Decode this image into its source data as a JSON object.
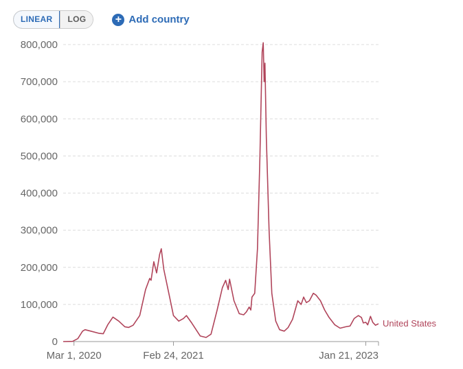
{
  "controls": {
    "scale_linear": "LINEAR",
    "scale_log": "LOG",
    "add_country": "Add country",
    "active_scale": "linear"
  },
  "chart_data": {
    "type": "line",
    "title": "",
    "xlabel": "",
    "ylabel": "",
    "x_range": [
      "2020-01-22",
      "2023-03-08"
    ],
    "ylim": [
      0,
      800000
    ],
    "yticks": [
      0,
      100000,
      200000,
      300000,
      400000,
      500000,
      600000,
      700000,
      800000
    ],
    "ytick_labels": [
      "0",
      "100,000",
      "200,000",
      "300,000",
      "400,000",
      "500,000",
      "600,000",
      "700,000",
      "800,000"
    ],
    "xticks": [
      "2020-03-01",
      "2021-02-24",
      "2023-01-21"
    ],
    "xtick_labels": [
      "Mar 1, 2020",
      "Feb 24, 2021",
      "Jan 21, 2023"
    ],
    "grid": "horizontal-dashed",
    "series": [
      {
        "name": "United States",
        "color": "#b0445a",
        "points": [
          [
            "2020-01-22",
            0
          ],
          [
            "2020-02-25",
            500
          ],
          [
            "2020-03-15",
            8000
          ],
          [
            "2020-04-01",
            28000
          ],
          [
            "2020-04-10",
            32000
          ],
          [
            "2020-05-01",
            28000
          ],
          [
            "2020-06-01",
            22000
          ],
          [
            "2020-06-15",
            21000
          ],
          [
            "2020-07-01",
            45000
          ],
          [
            "2020-07-20",
            66000
          ],
          [
            "2020-08-10",
            55000
          ],
          [
            "2020-09-01",
            40000
          ],
          [
            "2020-09-15",
            38000
          ],
          [
            "2020-10-01",
            44000
          ],
          [
            "2020-10-25",
            70000
          ],
          [
            "2020-11-15",
            140000
          ],
          [
            "2020-11-30",
            170000
          ],
          [
            "2020-12-05",
            165000
          ],
          [
            "2020-12-15",
            215000
          ],
          [
            "2020-12-25",
            185000
          ],
          [
            "2021-01-05",
            235000
          ],
          [
            "2021-01-11",
            250000
          ],
          [
            "2021-01-20",
            195000
          ],
          [
            "2021-02-10",
            120000
          ],
          [
            "2021-02-24",
            70000
          ],
          [
            "2021-03-15",
            55000
          ],
          [
            "2021-04-01",
            62000
          ],
          [
            "2021-04-12",
            70000
          ],
          [
            "2021-05-01",
            50000
          ],
          [
            "2021-06-01",
            15000
          ],
          [
            "2021-06-22",
            11000
          ],
          [
            "2021-07-10",
            20000
          ],
          [
            "2021-08-01",
            85000
          ],
          [
            "2021-08-20",
            145000
          ],
          [
            "2021-09-01",
            165000
          ],
          [
            "2021-09-10",
            140000
          ],
          [
            "2021-09-15",
            168000
          ],
          [
            "2021-10-01",
            110000
          ],
          [
            "2021-10-20",
            75000
          ],
          [
            "2021-11-05",
            72000
          ],
          [
            "2021-11-15",
            80000
          ],
          [
            "2021-11-25",
            93000
          ],
          [
            "2021-12-01",
            85000
          ],
          [
            "2021-12-05",
            120000
          ],
          [
            "2021-12-15",
            130000
          ],
          [
            "2021-12-25",
            250000
          ],
          [
            "2022-01-03",
            500000
          ],
          [
            "2022-01-11",
            780000
          ],
          [
            "2022-01-15",
            805000
          ],
          [
            "2022-01-18",
            700000
          ],
          [
            "2022-01-21",
            750000
          ],
          [
            "2022-01-26",
            550000
          ],
          [
            "2022-02-05",
            300000
          ],
          [
            "2022-02-15",
            130000
          ],
          [
            "2022-03-01",
            55000
          ],
          [
            "2022-03-15",
            32000
          ],
          [
            "2022-04-01",
            28000
          ],
          [
            "2022-04-15",
            38000
          ],
          [
            "2022-05-01",
            60000
          ],
          [
            "2022-05-20",
            110000
          ],
          [
            "2022-06-01",
            100000
          ],
          [
            "2022-06-10",
            120000
          ],
          [
            "2022-06-20",
            105000
          ],
          [
            "2022-07-01",
            110000
          ],
          [
            "2022-07-15",
            130000
          ],
          [
            "2022-07-25",
            125000
          ],
          [
            "2022-08-10",
            110000
          ],
          [
            "2022-08-25",
            85000
          ],
          [
            "2022-09-10",
            65000
          ],
          [
            "2022-10-01",
            45000
          ],
          [
            "2022-10-20",
            36000
          ],
          [
            "2022-11-10",
            40000
          ],
          [
            "2022-11-25",
            42000
          ],
          [
            "2022-12-10",
            62000
          ],
          [
            "2022-12-25",
            70000
          ],
          [
            "2023-01-05",
            65000
          ],
          [
            "2023-01-12",
            50000
          ],
          [
            "2023-01-21",
            52000
          ],
          [
            "2023-01-28",
            45000
          ],
          [
            "2023-02-07",
            68000
          ],
          [
            "2023-02-15",
            52000
          ],
          [
            "2023-02-25",
            44000
          ],
          [
            "2023-03-08",
            48000
          ]
        ]
      }
    ]
  }
}
